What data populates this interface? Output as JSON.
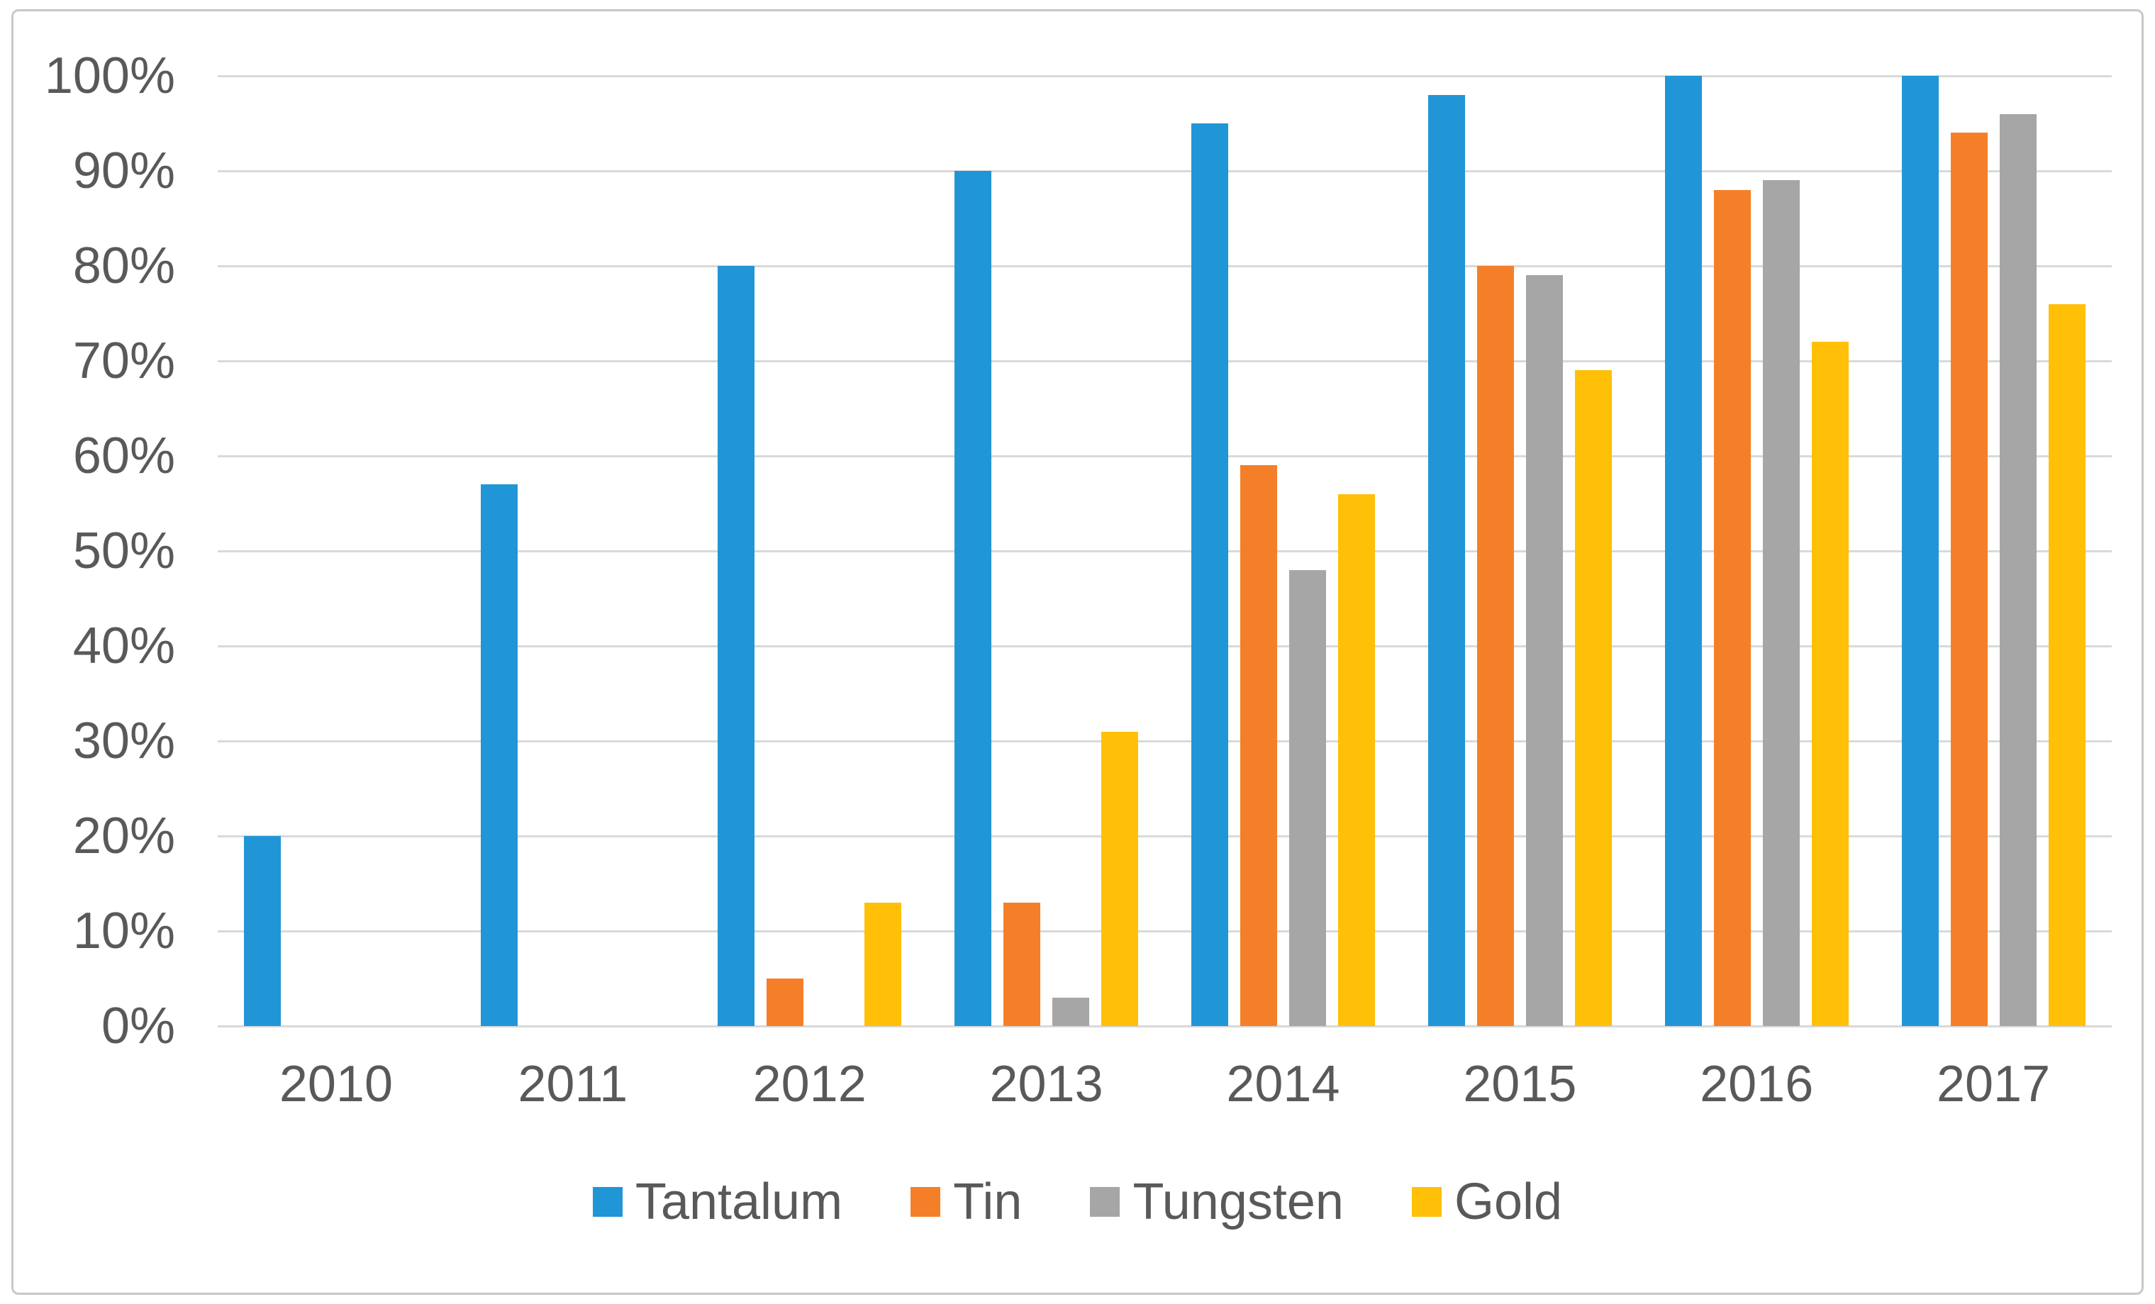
{
  "chart_data": {
    "type": "bar",
    "title": "",
    "categories": [
      "2010",
      "2011",
      "2012",
      "2013",
      "2014",
      "2015",
      "2016",
      "2017"
    ],
    "series": [
      {
        "name": "Tantalum",
        "color": "#2196d6",
        "values": [
          20,
          57,
          80,
          90,
          95,
          98,
          100,
          100
        ]
      },
      {
        "name": "Tin",
        "color": "#f57f28",
        "values": [
          0,
          0,
          5,
          13,
          59,
          80,
          88,
          94
        ]
      },
      {
        "name": "Tungsten",
        "color": "#a6a6a6",
        "values": [
          0,
          0,
          0,
          3,
          48,
          79,
          89,
          96
        ]
      },
      {
        "name": "Gold",
        "color": "#ffc007",
        "values": [
          0,
          0,
          13,
          31,
          56,
          69,
          72,
          76
        ]
      }
    ],
    "y_axis": {
      "min": 0,
      "max": 100,
      "step": 10,
      "tick_labels": [
        "100%",
        "90%",
        "80%",
        "70%",
        "60%",
        "50%",
        "40%",
        "30%",
        "20%",
        "10%",
        "0%"
      ]
    },
    "x_axis_label": "",
    "y_axis_label": "",
    "grid": true,
    "legend_position": "bottom",
    "legend": [
      "Tantalum",
      "Tin",
      "Tungsten",
      "Gold"
    ]
  },
  "style_colors": {
    "gridline": "#d9d9d9",
    "axis_text": "#595959",
    "frame_border": "#c8c8c8",
    "background": "#ffffff"
  }
}
